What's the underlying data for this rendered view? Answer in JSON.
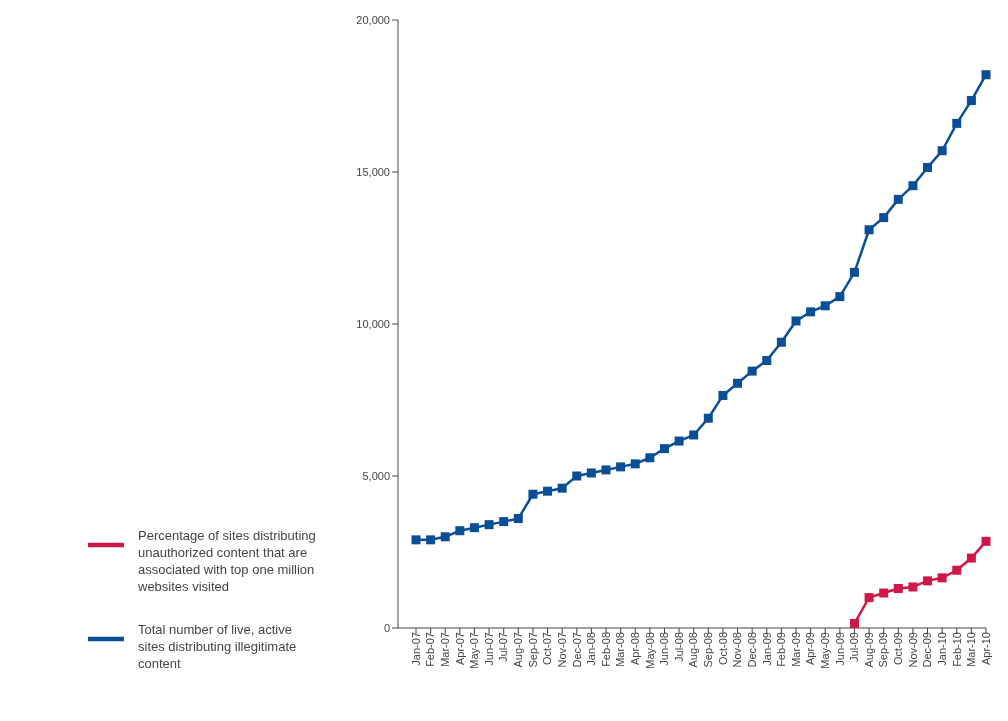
{
  "chart_data": {
    "type": "line",
    "categories": [
      "Jan-07",
      "Feb-07",
      "Mar-07",
      "Apr-07",
      "May-07",
      "Jun-07",
      "Jul-07",
      "Aug-07",
      "Sep-07",
      "Oct-07",
      "Nov-07",
      "Dec-07",
      "Jan-08",
      "Feb-08",
      "Mar-08",
      "Apr-08",
      "May-08",
      "Jun-08",
      "Jul-08",
      "Aug-08",
      "Sep-08",
      "Oct-08",
      "Nov-08",
      "Dec-08",
      "Jan-09",
      "Feb-09",
      "Mar-09",
      "Apr-09",
      "May-09",
      "Jun-09",
      "Jul-09",
      "Aug-09",
      "Sep-09",
      "Oct-09",
      "Nov-09",
      "Dec-09",
      "Jan-10",
      "Feb-10",
      "Mar-10",
      "Apr-10"
    ],
    "series": [
      {
        "name": "Total number of live, active sites distributing illegitimate content",
        "color": "#0a4f96",
        "values": [
          2900,
          2900,
          3000,
          3200,
          3300,
          3400,
          3500,
          3600,
          4400,
          4500,
          4600,
          5000,
          5100,
          5200,
          5300,
          5400,
          5600,
          5900,
          6150,
          6350,
          6900,
          7650,
          8050,
          8450,
          8800,
          9400,
          10100,
          10400,
          10600,
          10900,
          11700,
          13100,
          13500,
          14100,
          14550,
          15150,
          15700,
          16600,
          17350,
          18200
        ]
      },
      {
        "name": "Percentage of sites distributing unauthorized content that are associated with top one million websites visited",
        "color": "#d01848",
        "values": [
          null,
          null,
          null,
          null,
          null,
          null,
          null,
          null,
          null,
          null,
          null,
          null,
          null,
          null,
          null,
          null,
          null,
          null,
          null,
          null,
          null,
          null,
          null,
          null,
          null,
          null,
          null,
          null,
          null,
          null,
          150,
          1000,
          1150,
          1300,
          1350,
          1550,
          1650,
          1900,
          2300,
          2850
        ]
      }
    ],
    "ylim": [
      0,
      20000
    ],
    "yticks": [
      0,
      {
        "value": 5000,
        "label": "5,000"
      },
      {
        "value": 10000,
        "label": "10,000"
      },
      {
        "value": 15000,
        "label": "15,000"
      },
      {
        "value": 20000,
        "label": "20,000"
      }
    ],
    "grid": false,
    "legend": "bottom left",
    "marker": "square",
    "line_style": "solid"
  }
}
